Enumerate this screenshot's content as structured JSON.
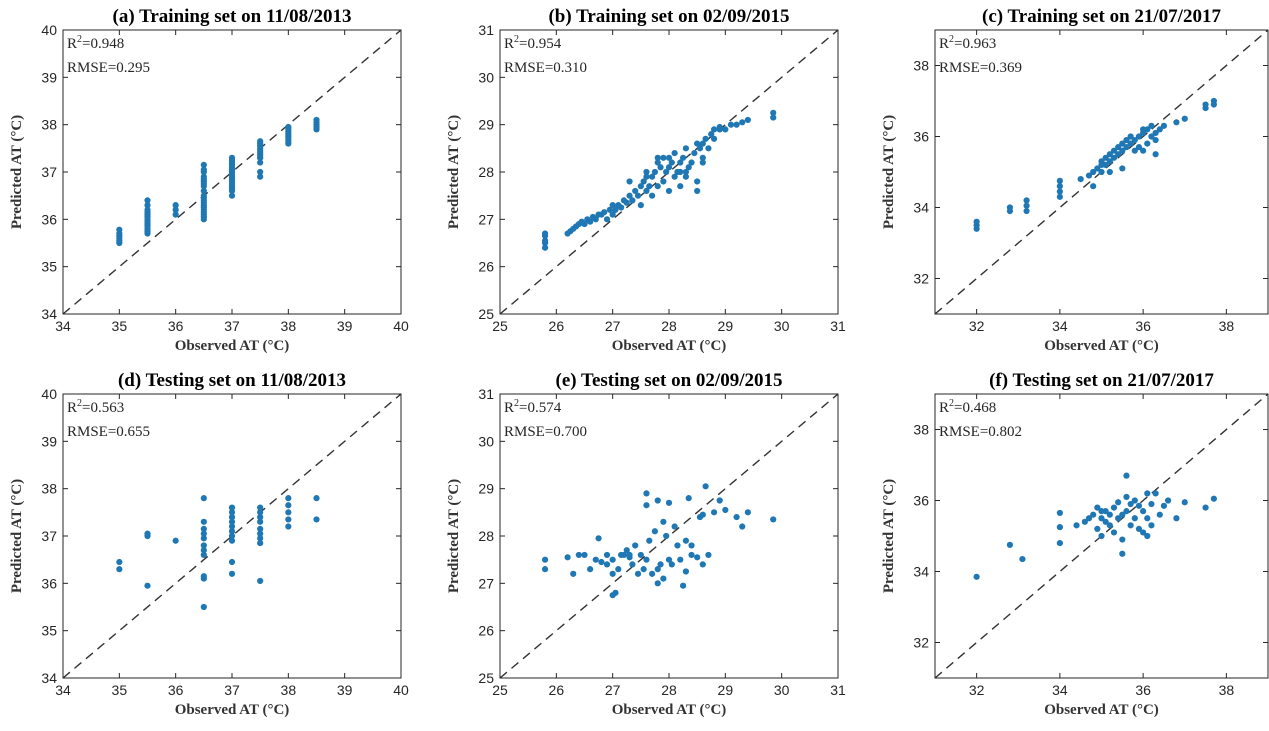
{
  "figure": {
    "point_color": "#1f77b4",
    "line_color": "#333333"
  },
  "chart_data": [
    {
      "type": "scatter",
      "title": "(a) Training set on 11/08/2013",
      "xlabel": "Observed AT (°C)",
      "ylabel": "Predicted AT (°C)",
      "xlim": [
        34,
        40
      ],
      "ylim": [
        34,
        40
      ],
      "xticks": [
        "34",
        "35",
        "36",
        "37",
        "38",
        "39",
        "40"
      ],
      "yticks": [
        "34",
        "35",
        "36",
        "37",
        "38",
        "39",
        "40"
      ],
      "r2_label": "R",
      "r2_sup": "2",
      "r2_value": "=0.948",
      "rmse": "RMSE=0.295",
      "reference_line": "y = x",
      "x": [
        35.0,
        35.0,
        35.0,
        35.0,
        35.0,
        35.0,
        35.5,
        35.5,
        35.5,
        35.5,
        35.5,
        35.5,
        35.5,
        35.5,
        35.5,
        35.5,
        35.5,
        35.5,
        35.5,
        36.0,
        36.0,
        36.0,
        36.5,
        36.5,
        36.5,
        36.5,
        36.5,
        36.5,
        36.5,
        36.5,
        36.5,
        36.5,
        36.5,
        36.5,
        36.5,
        36.5,
        36.5,
        36.5,
        36.5,
        36.5,
        36.5,
        36.5,
        37.0,
        37.0,
        37.0,
        37.0,
        37.0,
        37.0,
        37.0,
        37.0,
        37.0,
        37.0,
        37.0,
        37.0,
        37.0,
        37.0,
        37.0,
        37.0,
        37.5,
        37.5,
        37.5,
        37.5,
        37.5,
        37.5,
        37.5,
        37.5,
        37.5,
        37.5,
        37.5,
        37.5,
        38.0,
        38.0,
        38.0,
        38.0,
        38.0,
        38.0,
        38.0,
        38.0,
        38.5,
        38.5,
        38.5,
        38.5,
        38.5
      ],
      "y": [
        35.5,
        35.55,
        35.6,
        35.65,
        35.7,
        35.78,
        35.7,
        35.75,
        35.8,
        35.85,
        35.9,
        35.95,
        36.0,
        36.05,
        36.1,
        36.15,
        36.2,
        36.3,
        36.4,
        36.1,
        36.2,
        36.3,
        36.0,
        36.05,
        36.1,
        36.15,
        36.2,
        36.25,
        36.3,
        36.35,
        36.4,
        36.45,
        36.5,
        36.6,
        36.7,
        36.75,
        36.8,
        36.85,
        36.9,
        37.0,
        37.05,
        37.15,
        36.5,
        36.6,
        36.7,
        36.8,
        36.85,
        36.9,
        36.95,
        37.0,
        37.05,
        37.1,
        37.15,
        37.2,
        37.25,
        37.3,
        36.65,
        36.75,
        36.9,
        37.0,
        37.3,
        37.35,
        37.4,
        37.45,
        37.5,
        37.55,
        37.6,
        37.65,
        37.2,
        37.3,
        37.6,
        37.65,
        37.7,
        37.75,
        37.8,
        37.85,
        37.9,
        37.95,
        37.9,
        37.95,
        38.0,
        38.05,
        38.1
      ]
    },
    {
      "type": "scatter",
      "title": "(b) Training set on 02/09/2015",
      "xlabel": "Observed AT (°C)",
      "ylabel": "Predicted AT (°C)",
      "xlim": [
        25,
        31
      ],
      "ylim": [
        25,
        31
      ],
      "xticks": [
        "25",
        "26",
        "27",
        "28",
        "29",
        "30",
        "31"
      ],
      "yticks": [
        "25",
        "26",
        "27",
        "28",
        "29",
        "30",
        "31"
      ],
      "r2_label": "R",
      "r2_sup": "2",
      "r2_value": "=0.954",
      "rmse": "RMSE=0.310",
      "reference_line": "y = x",
      "x": [
        25.8,
        25.8,
        25.8,
        25.8,
        25.8,
        26.2,
        26.25,
        26.3,
        26.35,
        26.4,
        26.45,
        26.5,
        26.55,
        26.6,
        26.65,
        26.7,
        26.75,
        26.8,
        26.85,
        26.9,
        26.95,
        27.0,
        27.0,
        27.05,
        27.1,
        27.15,
        27.2,
        27.25,
        27.3,
        27.35,
        27.4,
        27.45,
        27.5,
        27.5,
        27.55,
        27.6,
        27.6,
        27.65,
        27.7,
        27.7,
        27.75,
        27.8,
        27.8,
        27.85,
        27.9,
        27.9,
        27.95,
        28.0,
        28.0,
        28.05,
        28.1,
        28.1,
        28.15,
        28.2,
        28.2,
        28.25,
        28.3,
        28.3,
        28.35,
        28.4,
        28.45,
        28.5,
        28.5,
        28.55,
        28.6,
        28.6,
        28.65,
        28.7,
        28.75,
        28.8,
        28.8,
        28.9,
        28.9,
        29.0,
        29.1,
        29.2,
        29.3,
        29.4,
        29.85,
        29.85,
        27.8,
        28.0,
        28.3,
        28.5,
        27.3,
        27.6,
        28.6,
        28.2
      ],
      "y": [
        26.4,
        26.5,
        26.55,
        26.65,
        26.7,
        26.7,
        26.75,
        26.8,
        26.85,
        26.9,
        26.95,
        26.9,
        27.0,
        26.95,
        27.05,
        27.0,
        27.1,
        27.1,
        27.15,
        27.0,
        27.2,
        27.1,
        27.3,
        27.2,
        27.3,
        27.25,
        27.4,
        27.35,
        27.5,
        27.4,
        27.6,
        27.5,
        27.7,
        27.3,
        27.8,
        27.6,
        28.0,
        27.7,
        27.9,
        27.5,
        28.0,
        28.2,
        27.7,
        28.1,
        27.8,
        28.3,
        28.0,
        28.1,
        27.6,
        28.2,
        27.9,
        28.4,
        28.0,
        28.2,
        27.7,
        28.3,
        28.0,
        28.5,
        28.1,
        28.2,
        28.4,
        27.8,
        28.6,
        28.5,
        28.6,
        28.3,
        28.7,
        28.5,
        28.8,
        28.9,
        28.7,
        28.9,
        28.95,
        28.9,
        29.0,
        29.0,
        29.05,
        29.1,
        29.15,
        29.25,
        28.3,
        28.3,
        27.9,
        27.6,
        27.8,
        27.9,
        28.2,
        28.0
      ]
    },
    {
      "type": "scatter",
      "title": "(c) Training set on 21/07/2017",
      "xlabel": "Observed AT (°C)",
      "ylabel": "Predicted AT (°C)",
      "xlim": [
        31,
        39
      ],
      "ylim": [
        31,
        39
      ],
      "xticks": [
        "32",
        "34",
        "36",
        "38"
      ],
      "yticks": [
        "32",
        "34",
        "36",
        "38"
      ],
      "r2_label": "R",
      "r2_sup": "2",
      "r2_value": "=0.963",
      "rmse": "RMSE=0.369",
      "reference_line": "y = x",
      "x": [
        32.0,
        32.0,
        32.0,
        32.8,
        32.8,
        33.2,
        33.2,
        33.2,
        34.0,
        34.0,
        34.0,
        34.0,
        34.5,
        34.7,
        34.8,
        34.9,
        35.0,
        35.0,
        35.1,
        35.1,
        35.2,
        35.2,
        35.3,
        35.3,
        35.4,
        35.4,
        35.5,
        35.5,
        35.6,
        35.6,
        35.7,
        35.7,
        35.8,
        35.8,
        35.9,
        35.9,
        36.0,
        36.0,
        36.1,
        36.1,
        36.2,
        36.2,
        36.3,
        36.3,
        36.4,
        36.5,
        36.8,
        37.0,
        37.5,
        37.5,
        37.7,
        37.7,
        35.2,
        35.5,
        36.3,
        35.0,
        34.8,
        36.0
      ],
      "y": [
        33.4,
        33.5,
        33.6,
        33.9,
        34.0,
        33.9,
        34.05,
        34.2,
        34.3,
        34.45,
        34.6,
        34.75,
        34.8,
        34.9,
        35.0,
        35.1,
        35.0,
        35.3,
        35.2,
        35.4,
        35.3,
        35.5,
        35.4,
        35.6,
        35.5,
        35.7,
        35.6,
        35.8,
        35.7,
        35.9,
        35.8,
        36.0,
        35.9,
        35.6,
        36.0,
        35.7,
        36.1,
        35.6,
        36.2,
        35.8,
        36.0,
        36.3,
        36.1,
        35.9,
        36.2,
        36.3,
        36.4,
        36.5,
        36.8,
        36.9,
        36.9,
        37.0,
        35.0,
        35.1,
        35.5,
        35.2,
        34.6,
        36.2
      ]
    },
    {
      "type": "scatter",
      "title": "(d) Testing set on 11/08/2013",
      "xlabel": "Observed AT (°C)",
      "ylabel": "Predicted AT (°C)",
      "xlim": [
        34,
        40
      ],
      "ylim": [
        34,
        40
      ],
      "xticks": [
        "34",
        "35",
        "36",
        "37",
        "38",
        "39",
        "40"
      ],
      "yticks": [
        "34",
        "35",
        "36",
        "37",
        "38",
        "39",
        "40"
      ],
      "r2_label": "R",
      "r2_sup": "2",
      "r2_value": "=0.563",
      "rmse": "RMSE=0.655",
      "reference_line": "y = x",
      "x": [
        35.0,
        35.0,
        35.5,
        35.5,
        35.5,
        36.0,
        36.5,
        36.5,
        36.5,
        36.5,
        36.5,
        36.5,
        36.5,
        36.5,
        36.5,
        36.5,
        36.5,
        37.0,
        37.0,
        37.0,
        37.0,
        37.0,
        37.0,
        37.0,
        37.0,
        37.0,
        37.0,
        37.5,
        37.5,
        37.5,
        37.5,
        37.5,
        37.5,
        37.5,
        37.5,
        37.5,
        38.0,
        38.0,
        38.0,
        38.0,
        38.0,
        38.5,
        38.5
      ],
      "y": [
        36.3,
        36.45,
        35.95,
        37.05,
        37.0,
        36.9,
        35.5,
        36.1,
        36.15,
        36.6,
        36.7,
        36.8,
        36.95,
        37.05,
        37.15,
        37.3,
        37.8,
        36.2,
        36.45,
        36.9,
        37.0,
        37.1,
        37.2,
        37.3,
        37.4,
        37.5,
        37.6,
        36.05,
        36.85,
        36.95,
        37.05,
        37.15,
        37.3,
        37.4,
        37.5,
        37.6,
        37.2,
        37.35,
        37.5,
        37.65,
        37.8,
        37.35,
        37.8
      ]
    },
    {
      "type": "scatter",
      "title": "(e) Testing set on 02/09/2015",
      "xlabel": "Observed AT (°C)",
      "ylabel": "Predicted AT (°C)",
      "xlim": [
        25,
        31
      ],
      "ylim": [
        25,
        31
      ],
      "xticks": [
        "25",
        "26",
        "27",
        "28",
        "29",
        "30",
        "31"
      ],
      "yticks": [
        "25",
        "26",
        "27",
        "28",
        "29",
        "30",
        "31"
      ],
      "r2_label": "R",
      "r2_sup": "2",
      "r2_value": "=0.574",
      "rmse": "RMSE=0.700",
      "reference_line": "y = x",
      "x": [
        25.8,
        25.8,
        26.2,
        26.3,
        26.4,
        26.5,
        26.6,
        26.7,
        26.75,
        26.8,
        26.9,
        27.0,
        27.05,
        27.1,
        27.15,
        27.2,
        27.25,
        27.3,
        27.35,
        27.4,
        27.45,
        27.5,
        27.55,
        27.6,
        27.6,
        27.65,
        27.7,
        27.75,
        27.8,
        27.8,
        27.85,
        27.9,
        27.95,
        28.0,
        28.0,
        28.05,
        28.1,
        28.15,
        28.2,
        28.25,
        28.3,
        28.35,
        28.4,
        28.5,
        28.55,
        28.6,
        28.65,
        28.7,
        28.8,
        28.9,
        29.0,
        29.2,
        29.3,
        29.4,
        29.85,
        27.0,
        27.3,
        28.6,
        27.6,
        27.0,
        26.9,
        28.3,
        27.9,
        28.4,
        27.8
      ],
      "y": [
        27.3,
        27.5,
        27.55,
        27.2,
        27.6,
        27.6,
        27.3,
        27.5,
        27.95,
        27.45,
        27.6,
        27.5,
        26.8,
        27.3,
        27.6,
        27.6,
        27.7,
        27.55,
        27.4,
        27.8,
        27.2,
        27.6,
        27.3,
        28.9,
        27.5,
        27.9,
        27.2,
        28.1,
        28.75,
        27.3,
        27.4,
        27.1,
        28.0,
        28.7,
        27.5,
        27.4,
        28.2,
        27.8,
        27.5,
        26.95,
        27.9,
        28.8,
        27.6,
        27.55,
        28.4,
        28.45,
        29.05,
        27.6,
        28.5,
        28.75,
        28.55,
        28.4,
        28.2,
        28.5,
        28.35,
        27.2,
        27.6,
        27.4,
        28.65,
        26.75,
        27.4,
        27.25,
        28.3,
        27.8,
        27.0
      ]
    },
    {
      "type": "scatter",
      "title": "(f) Testing set on 21/07/2017",
      "xlabel": "Observed AT (°C)",
      "ylabel": "Predicted AT (°C)",
      "xlim": [
        31,
        39
      ],
      "ylim": [
        31,
        39
      ],
      "xticks": [
        "32",
        "34",
        "36",
        "38"
      ],
      "yticks": [
        "32",
        "34",
        "36",
        "38"
      ],
      "r2_label": "R",
      "r2_sup": "2",
      "r2_value": "=0.468",
      "rmse": "RMSE=0.802",
      "reference_line": "y = x",
      "x": [
        32.0,
        32.8,
        33.1,
        34.0,
        34.0,
        34.0,
        34.4,
        34.6,
        34.7,
        34.8,
        34.9,
        34.9,
        35.0,
        35.0,
        35.1,
        35.1,
        35.2,
        35.2,
        35.3,
        35.3,
        35.4,
        35.4,
        35.5,
        35.5,
        35.6,
        35.6,
        35.6,
        35.7,
        35.7,
        35.8,
        35.8,
        35.9,
        35.9,
        36.0,
        36.0,
        36.1,
        36.1,
        36.2,
        36.2,
        36.3,
        36.4,
        36.5,
        36.6,
        36.8,
        37.0,
        37.5,
        37.7,
        35.5,
        35.0,
        36.1
      ],
      "y": [
        33.85,
        34.75,
        34.35,
        35.65,
        35.25,
        34.8,
        35.3,
        35.4,
        35.5,
        35.6,
        35.2,
        35.8,
        35.0,
        35.5,
        35.4,
        35.7,
        35.3,
        35.6,
        35.8,
        35.1,
        35.5,
        35.95,
        35.6,
        34.5,
        36.1,
        35.7,
        36.7,
        35.9,
        35.3,
        36.0,
        35.5,
        35.2,
        35.85,
        35.7,
        35.1,
        36.2,
        35.5,
        35.3,
        35.9,
        36.2,
        35.6,
        35.85,
        36.0,
        35.5,
        35.95,
        35.8,
        36.05,
        34.9,
        35.7,
        35.0
      ]
    }
  ]
}
